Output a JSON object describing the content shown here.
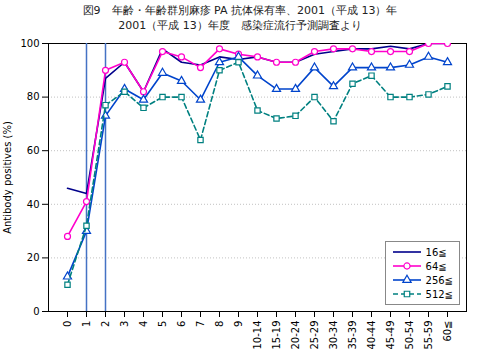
{
  "chart_data": {
    "type": "line",
    "title": "図9　年齢・年齢群別麻疹 PA 抗体保有率、2001（平成 13）年",
    "subtitle": "2001（平成 13）年度　感染症流行予測調査より",
    "y_label": "Antibody positives (%)",
    "categories": [
      "0",
      "1",
      "2",
      "3",
      "4",
      "5",
      "6",
      "7",
      "8",
      "9",
      "10-14",
      "15-19",
      "20-24",
      "25-29",
      "30-34",
      "35-39",
      "40-44",
      "45-49",
      "50-54",
      "55-59",
      "60≦"
    ],
    "series": [
      {
        "name": "16≦",
        "color": "#00008B",
        "line_style": "solid",
        "marker": "none",
        "values": [
          46,
          44,
          87,
          93,
          82,
          98,
          93,
          92,
          95,
          94,
          95,
          93,
          93,
          96,
          97,
          98,
          98,
          99,
          98,
          100,
          100
        ]
      },
      {
        "name": "64≦",
        "color": "#FF00CC",
        "line_style": "solid",
        "marker": "circle",
        "values": [
          28,
          41,
          90,
          93,
          82,
          97,
          95,
          91,
          98,
          96,
          95,
          93,
          93,
          97,
          98,
          98,
          97,
          97,
          97,
          100,
          100
        ]
      },
      {
        "name": "256≦",
        "color": "#0044CC",
        "line_style": "solid",
        "marker": "triangle",
        "values": [
          13,
          30,
          73,
          83,
          79,
          89,
          86,
          79,
          93,
          95,
          88,
          83,
          83,
          91,
          84,
          91,
          91,
          91,
          92,
          95,
          93
        ]
      },
      {
        "name": "512≦",
        "color": "#008080",
        "line_style": "dashed",
        "marker": "square",
        "values": [
          10,
          32,
          77,
          82,
          76,
          80,
          80,
          64,
          90,
          93,
          75,
          72,
          73,
          80,
          71,
          85,
          88,
          80,
          80,
          81,
          84
        ]
      }
    ],
    "vlines": [
      {
        "x": "1",
        "color": "#4472C4"
      },
      {
        "x": "2",
        "color": "#4472C4"
      }
    ],
    "ylim": [
      0,
      100
    ],
    "yticks": [
      0,
      20,
      40,
      60,
      80,
      100
    ],
    "grid": true,
    "legend": "lower right"
  }
}
